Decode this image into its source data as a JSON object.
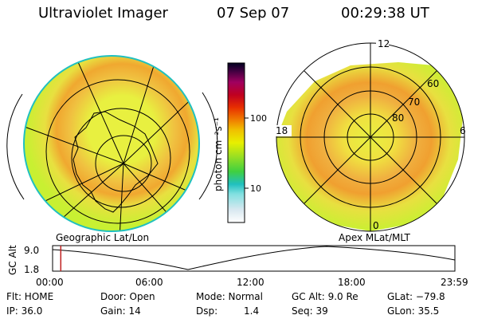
{
  "header": {
    "instrument": "Ultraviolet Imager",
    "date": "07 Sep 07",
    "time": "00:29:38 UT"
  },
  "colorbar": {
    "unit_label": "photon cm⁻²s⁻¹",
    "ticks": [
      "100",
      "10"
    ]
  },
  "left_panel": {
    "caption": "Geographic Lat/Lon"
  },
  "right_panel": {
    "caption": "Apex MLat/MLT",
    "mlt_labels": [
      "12",
      "18",
      "6",
      "0"
    ],
    "mlat_labels": [
      "60",
      "70",
      "80"
    ]
  },
  "orbit_plot": {
    "ylabel": "GC Alt",
    "ymax": "9.0",
    "ymin": "1.8",
    "time_ticks": [
      "00:00",
      "06:00",
      "12:00",
      "18:00",
      "23:59"
    ],
    "marker_time_hours": 0.49
  },
  "status": {
    "filter": "Flt: HOME",
    "ip": "IP: 36.0",
    "door": "Door: Open",
    "gain": "Gain: 14",
    "mode": "Mode: Normal",
    "dsp_label": "Dsp:",
    "dsp_value": "1.4",
    "gc_alt": "GC Alt: 9.0 Re",
    "seq": "Seq: 39",
    "glat": "GLat: −79.8",
    "glon": "GLon: 35.5"
  },
  "colors": {
    "outer_glow": "#c8f032",
    "oval_mid": "#f0e000",
    "oval_peak": "#f0a020",
    "edge": "#20c0c0",
    "marker": "#c02020"
  }
}
